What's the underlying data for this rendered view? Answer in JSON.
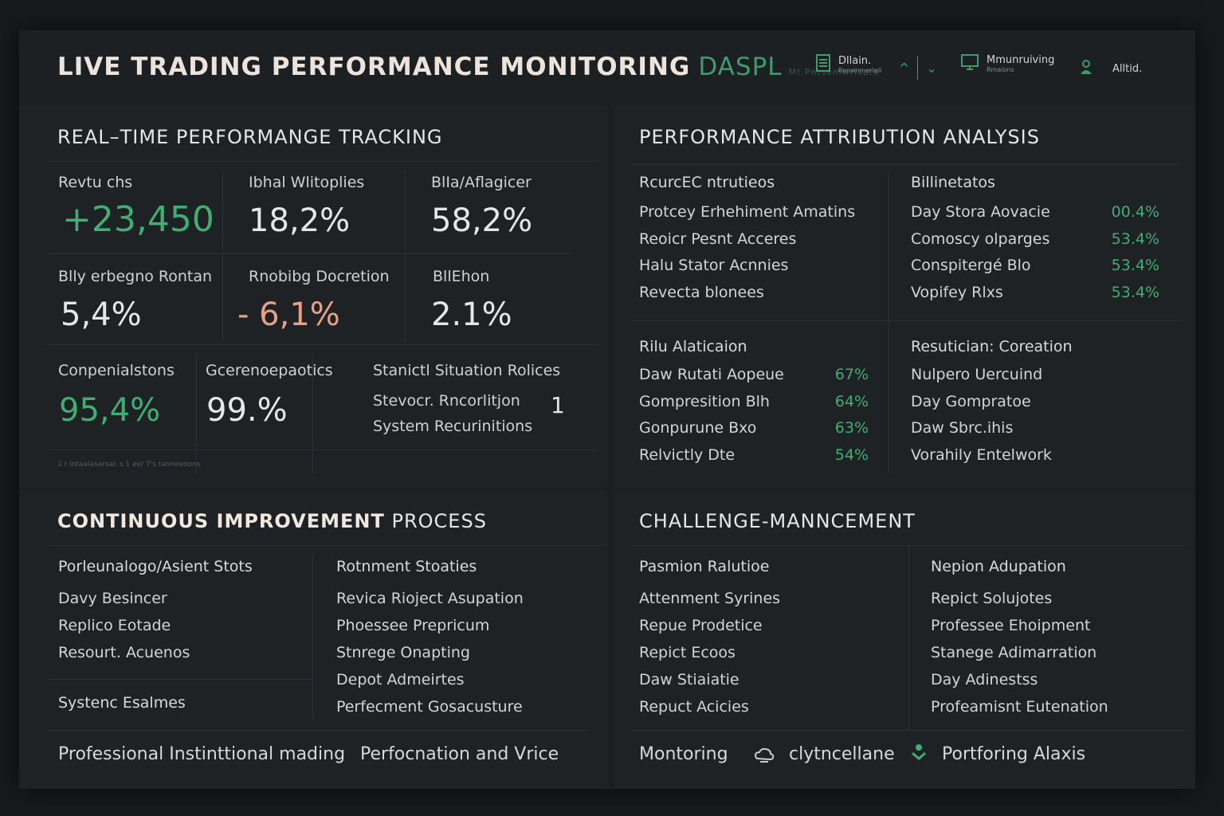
{
  "header": {
    "title": "LIVE TRADING PERFORMANCE MONITORING",
    "title_accent": "DASPL",
    "title_faint": "Mt.Pntsemwrisate",
    "items": [
      {
        "icon": "document-icon",
        "label": "Dllain.",
        "sub": "Renwnmerieli"
      },
      {
        "icon": "chevron-up-icon",
        "label": "^"
      },
      {
        "icon": "chevron-down-icon",
        "label": "⌄"
      },
      {
        "icon": "monitor-icon",
        "label": "Mmunruiving",
        "sub": "Rmaions"
      },
      {
        "icon": "user-icon",
        "label": "Alltid."
      }
    ]
  },
  "tracking": {
    "title": "REAL–TIME PERFORMANGE TRACKING",
    "metrics": [
      {
        "label": "Revtu chs",
        "value": "+23,450"
      },
      {
        "label": "Ibhal Wlitoplies",
        "value": "18,2%"
      },
      {
        "label": "BlIa/Aflagicer",
        "value": "58,2%"
      },
      {
        "label": "Blly erbegno Rontan",
        "value": "5,4%"
      },
      {
        "label": "Rnobibg Docretion",
        "value": "- 6,1%"
      },
      {
        "label": "BllEhon",
        "value": "2.1%"
      }
    ],
    "row3": [
      {
        "label": "Conpenialstons",
        "value": "95,4%"
      },
      {
        "label": "Gcerenoepaotics",
        "value": "99.%"
      }
    ],
    "status": {
      "label": "Stanictl Situation Rolices",
      "line1": "Stevocr. Rncorlitjon",
      "line1_value": "1",
      "line2": "System Recurinitions"
    },
    "tiny_text": "1 r intaalasarsac s 1 ee/ 7's taoneeoons"
  },
  "attribution": {
    "title": "PERFORMANCE ATTRIBUTION ANALYSIS",
    "left_head": "RcurcEC ntrutieos",
    "left_items": [
      "Protcey Erhehiment Amatins",
      "Reoicr Pesnt Acceres",
      "Halu Stator Acnnies",
      "Revecta blonees"
    ],
    "right_head": "Billinetatos",
    "right_items": [
      {
        "label": "Day Stora Aovacie",
        "pct": "00.4%"
      },
      {
        "label": "Comoscy olparges",
        "pct": "53.4%"
      },
      {
        "label": "Conspitergé Blo",
        "pct": "53.4%"
      },
      {
        "label": "Vopifey Rlxs",
        "pct": "53.4%"
      }
    ],
    "bottom_left_head": "Rilu Alaticaion",
    "bottom_left_items": [
      {
        "label": "Daw Rutati Aopeue",
        "pct": "67%"
      },
      {
        "label": "Gompresition Blh",
        "pct": "64%"
      },
      {
        "label": "Gonpurune Bxo",
        "pct": "63%"
      },
      {
        "label": "Relvictly Dte",
        "pct": "54%"
      }
    ],
    "bottom_right_head": "Resutician: Coreation",
    "bottom_right_items": [
      "Nulpero Uercuind",
      "Day Gompratoe",
      "Daw Sbrc.ihis",
      "Vorahily Entelwork"
    ]
  },
  "improvement": {
    "title_bold": "CONTINUOUS IMPROVEMENT",
    "title_rest": "PROCESS",
    "left_head": "Porleunalogo/Asient Stots",
    "left_items": [
      "Davy Besincer",
      "Replico Eotade",
      "Resourt. Acuenos"
    ],
    "left_footer": "Systenc Esalmes",
    "right_head": "Rotnment Stoaties",
    "right_items": [
      "Revica Rioject Asupation",
      "Phoessee Prepricum",
      "Stnrege Onapting",
      "Depot Admeirtes",
      "Perfecment Gosacusture"
    ],
    "footer_left": "Professional Instinttional mading",
    "footer_right": "Perfocnation and Vrice"
  },
  "challenge": {
    "title": "CHALLENGE-MANNCEMENT",
    "left_head": "Pasmion Ralutioe",
    "left_items": [
      "Attenment Syrines",
      "Repue Prodetice",
      "Repict Ecoos",
      "Daw Stiaiatie",
      "Repuct Acicies"
    ],
    "right_head": "Nepion Adupation",
    "right_items": [
      "Repict Solujotes",
      "Professee Ehoipment",
      "Stanege Adimarration",
      "Day Adinestss",
      "Profeamisnt Eutenation"
    ],
    "footer": [
      {
        "icon": "",
        "label": "Montoring"
      },
      {
        "icon": "cloud-sync-icon",
        "label": "clytncellane"
      },
      {
        "icon": "shield-check-icon",
        "label": "Portforing Alaxis"
      }
    ]
  },
  "colors": {
    "accent_green": "#3fae72",
    "negative": "#e8a184",
    "background": "#1c1f22"
  }
}
